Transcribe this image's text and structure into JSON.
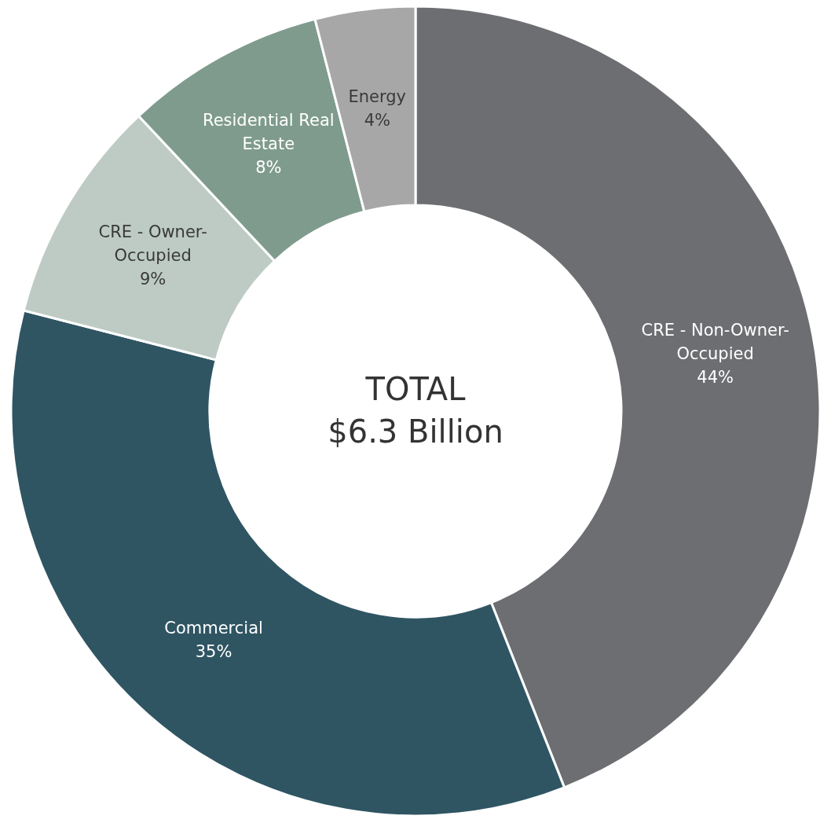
{
  "chart_data": {
    "type": "donut",
    "categories": [
      "CRE - Non-Owner-Occupied",
      "Commercial",
      "CRE - Owner-Occupied",
      "Residential Real Estate",
      "Energy"
    ],
    "values": [
      44,
      35,
      9,
      8,
      4
    ],
    "value_labels": [
      "44%",
      "35%",
      "9%",
      "8%",
      "4%"
    ],
    "colors": [
      "#6d6e71",
      "#2f5563",
      "#bdcbc4",
      "#7f9b8e",
      "#a7a7a7"
    ],
    "annotations": [
      "TOTAL",
      "$6.3 Billion"
    ]
  }
}
